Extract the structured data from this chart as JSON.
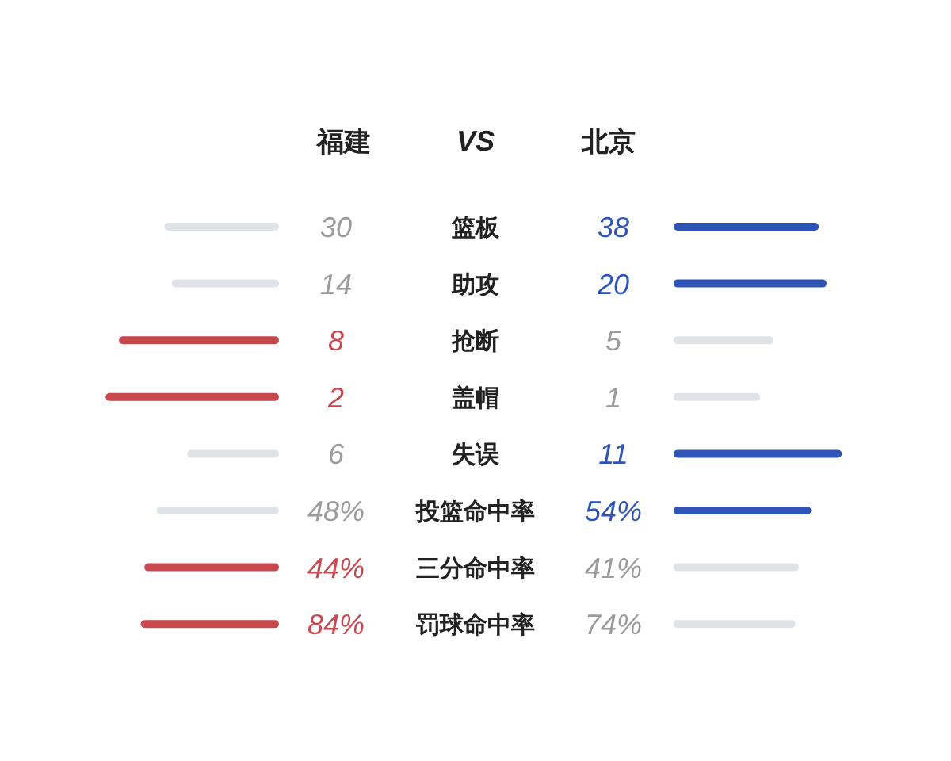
{
  "chart_data": {
    "type": "other",
    "categories": [
      "篮板",
      "助攻",
      "抢断",
      "盖帽",
      "失误",
      "投篮命中率",
      "三分命中率",
      "罚球命中率"
    ],
    "series": [
      {
        "name": "福建",
        "colors": [
          "#dfe3e8",
          "#dfe3e8",
          "#c8484e",
          "#c8484e",
          "#dfe3e8",
          "#dfe3e8",
          "#c8484e",
          "#c8484e"
        ],
        "values": [
          30,
          14,
          8,
          2,
          6,
          48,
          44,
          84
        ],
        "value_labels": [
          "30",
          "14",
          "8",
          "2",
          "6",
          "48%",
          "44%",
          "84%"
        ]
      },
      {
        "name": "北京",
        "colors": [
          "#2e54b8",
          "#2e54b8",
          "#dfe3e8",
          "#dfe3e8",
          "#2e54b8",
          "#2e54b8",
          "#dfe3e8",
          "#dfe3e8"
        ],
        "values": [
          38,
          20,
          5,
          1,
          11,
          54,
          41,
          74
        ],
        "value_labels": [
          "38",
          "20",
          "5",
          "1",
          "11",
          "54%",
          "41%",
          "74%"
        ]
      }
    ],
    "annotations": [
      "VS"
    ]
  }
}
